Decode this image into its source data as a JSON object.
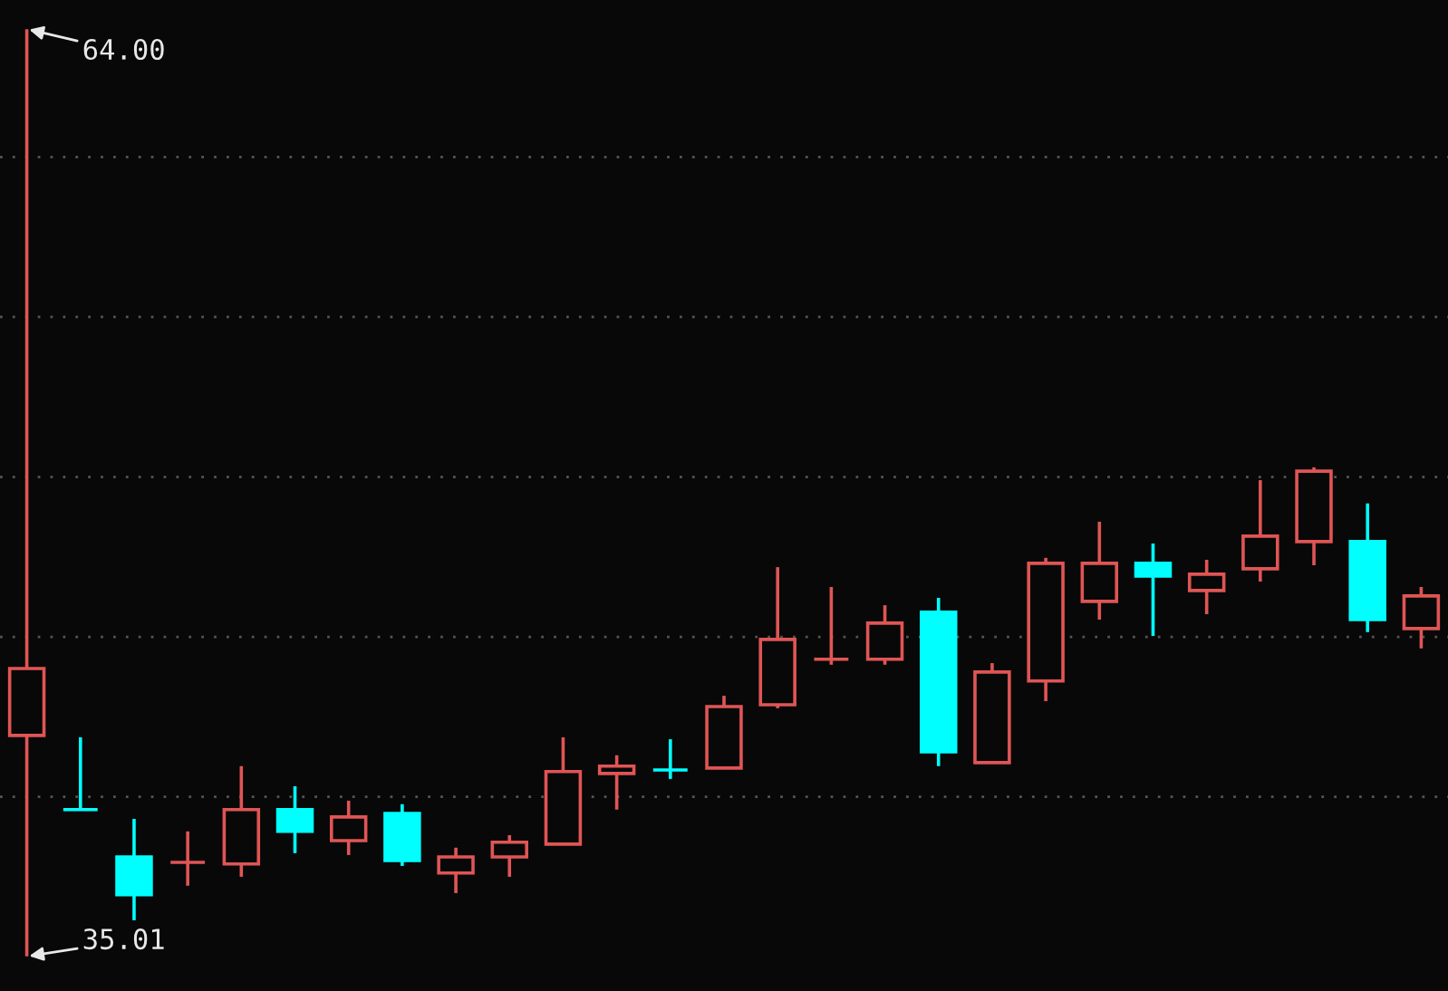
{
  "chart_data": {
    "type": "candlestick",
    "categories": [
      null,
      null,
      null,
      null,
      null,
      null,
      null,
      null,
      null,
      null,
      null,
      null,
      null,
      null,
      null,
      null,
      null,
      null,
      null,
      null,
      null,
      null,
      null,
      null,
      null,
      null,
      null
    ],
    "ohlc": [
      [
        41.92,
        64.0,
        35.01,
        44.01
      ],
      [
        39.6,
        41.86,
        39.6,
        39.6
      ],
      [
        38.12,
        39.31,
        36.14,
        36.94
      ],
      [
        37.95,
        38.92,
        37.22,
        37.95
      ],
      [
        37.9,
        40.96,
        37.5,
        39.6
      ],
      [
        39.6,
        40.33,
        38.24,
        38.92
      ],
      [
        38.63,
        39.88,
        38.18,
        39.37
      ],
      [
        39.48,
        39.77,
        37.84,
        38.01
      ],
      [
        37.62,
        38.41,
        36.99,
        38.12
      ],
      [
        38.12,
        38.8,
        37.5,
        38.58
      ],
      [
        38.52,
        41.86,
        38.52,
        40.79
      ],
      [
        40.73,
        41.3,
        39.6,
        40.96
      ],
      [
        40.84,
        41.8,
        40.56,
        40.84
      ],
      [
        40.9,
        43.16,
        40.9,
        42.82
      ],
      [
        42.88,
        47.18,
        42.77,
        44.92
      ],
      [
        44.3,
        46.56,
        44.13,
        44.3
      ],
      [
        44.3,
        45.99,
        44.13,
        45.43
      ],
      [
        45.77,
        46.22,
        40.96,
        41.41
      ],
      [
        41.07,
        44.18,
        41.07,
        43.9
      ],
      [
        43.62,
        47.47,
        42.99,
        47.3
      ],
      [
        46.11,
        48.6,
        45.54,
        47.3
      ],
      [
        47.3,
        47.92,
        45.03,
        46.9
      ],
      [
        46.45,
        47.41,
        45.71,
        46.96
      ],
      [
        47.13,
        49.9,
        46.73,
        48.15
      ],
      [
        47.98,
        50.3,
        47.24,
        50.18
      ],
      [
        47.98,
        49.17,
        45.15,
        45.54
      ],
      [
        45.26,
        46.56,
        44.64,
        46.28
      ]
    ],
    "colors": [
      "#e05555",
      "#00ffff",
      "#00ffff",
      "#e05555",
      "#e05555",
      "#00ffff",
      "#e05555",
      "#00ffff",
      "#e05555",
      "#e05555",
      "#e05555",
      "#e05555",
      "#00ffff",
      "#e05555",
      "#e05555",
      "#e05555",
      "#e05555",
      "#00ffff",
      "#e05555",
      "#e05555",
      "#e05555",
      "#00ffff",
      "#e05555",
      "#e05555",
      "#e05555",
      "#00ffff",
      "#e05555"
    ],
    "ylim": [
      33.93,
      64.91
    ],
    "yticks": [
      {
        "value": 40,
        "label": null
      },
      {
        "value": 45,
        "label": null
      },
      {
        "value": 50,
        "label": null
      },
      {
        "value": 55,
        "label": null
      },
      {
        "value": 60,
        "label": null
      }
    ],
    "grid": "y",
    "annotations": [
      "64.00",
      "35.01"
    ]
  }
}
